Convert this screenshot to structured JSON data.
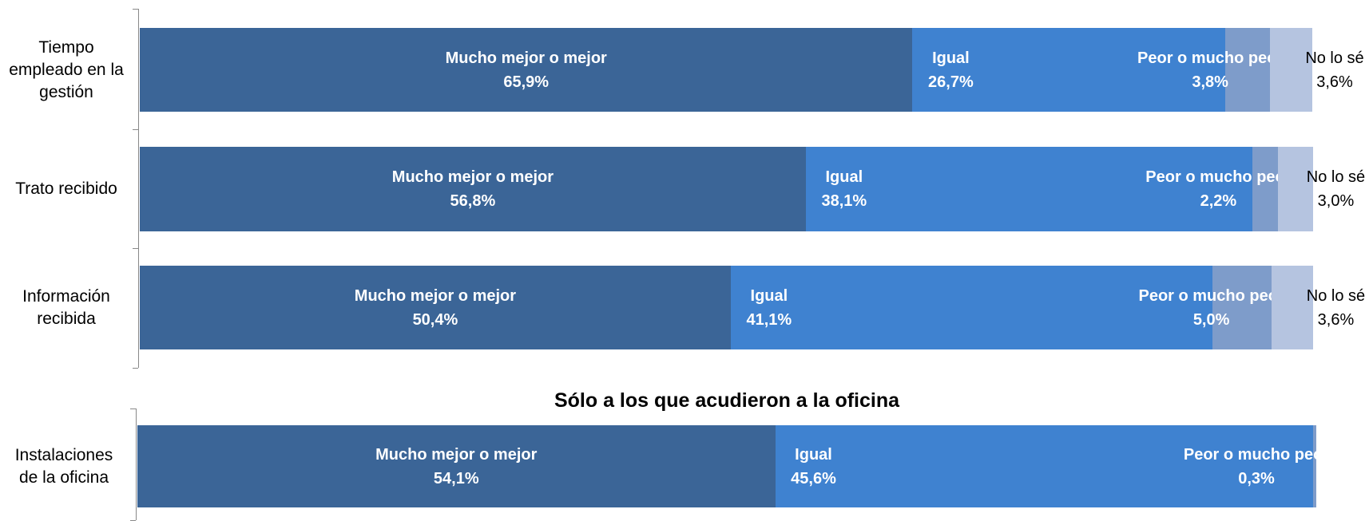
{
  "chart_data": [
    {
      "type": "stacked-bar-horizontal",
      "categories": [
        "Tiempo empleado en la gestión",
        "Trato recibido",
        "Información recibida"
      ],
      "xlim": [
        0,
        100
      ],
      "series": [
        {
          "name": "Mucho mejor o mejor",
          "color": "#3b6597",
          "values": [
            65.9,
            56.8,
            50.4
          ],
          "value_labels": [
            "65,9%",
            "56,8%",
            "50,4%"
          ]
        },
        {
          "name": "Igual",
          "color": "#3f82d0",
          "values": [
            26.7,
            38.1,
            41.1
          ],
          "value_labels": [
            "26,7%",
            "38,1%",
            "41,1%"
          ]
        },
        {
          "name": "Peor o mucho peor",
          "color": "#7e9cca",
          "values": [
            3.8,
            2.2,
            5.0
          ],
          "value_labels": [
            "3,8%",
            "2,2%",
            "5,0%"
          ]
        },
        {
          "name": "No lo sé",
          "color": "#b5c4e0",
          "values": [
            3.6,
            3.0,
            3.6
          ],
          "value_labels": [
            "3,6%",
            "3,0%",
            "3,6%"
          ]
        }
      ]
    },
    {
      "type": "stacked-bar-horizontal",
      "title": "Sólo a los que acudieron a la oficina",
      "categories": [
        "Instalaciones de la oficina"
      ],
      "xlim": [
        0,
        100
      ],
      "series": [
        {
          "name": "Mucho mejor o mejor",
          "color": "#3b6597",
          "values": [
            54.1
          ],
          "value_labels": [
            "54,1%"
          ]
        },
        {
          "name": "Igual",
          "color": "#3f82d0",
          "values": [
            45.6
          ],
          "value_labels": [
            "45,6%"
          ]
        },
        {
          "name": "Peor o mucho peor",
          "color": "#7e9cca",
          "values": [
            0.3
          ],
          "value_labels": [
            "0,3%"
          ]
        }
      ]
    }
  ]
}
